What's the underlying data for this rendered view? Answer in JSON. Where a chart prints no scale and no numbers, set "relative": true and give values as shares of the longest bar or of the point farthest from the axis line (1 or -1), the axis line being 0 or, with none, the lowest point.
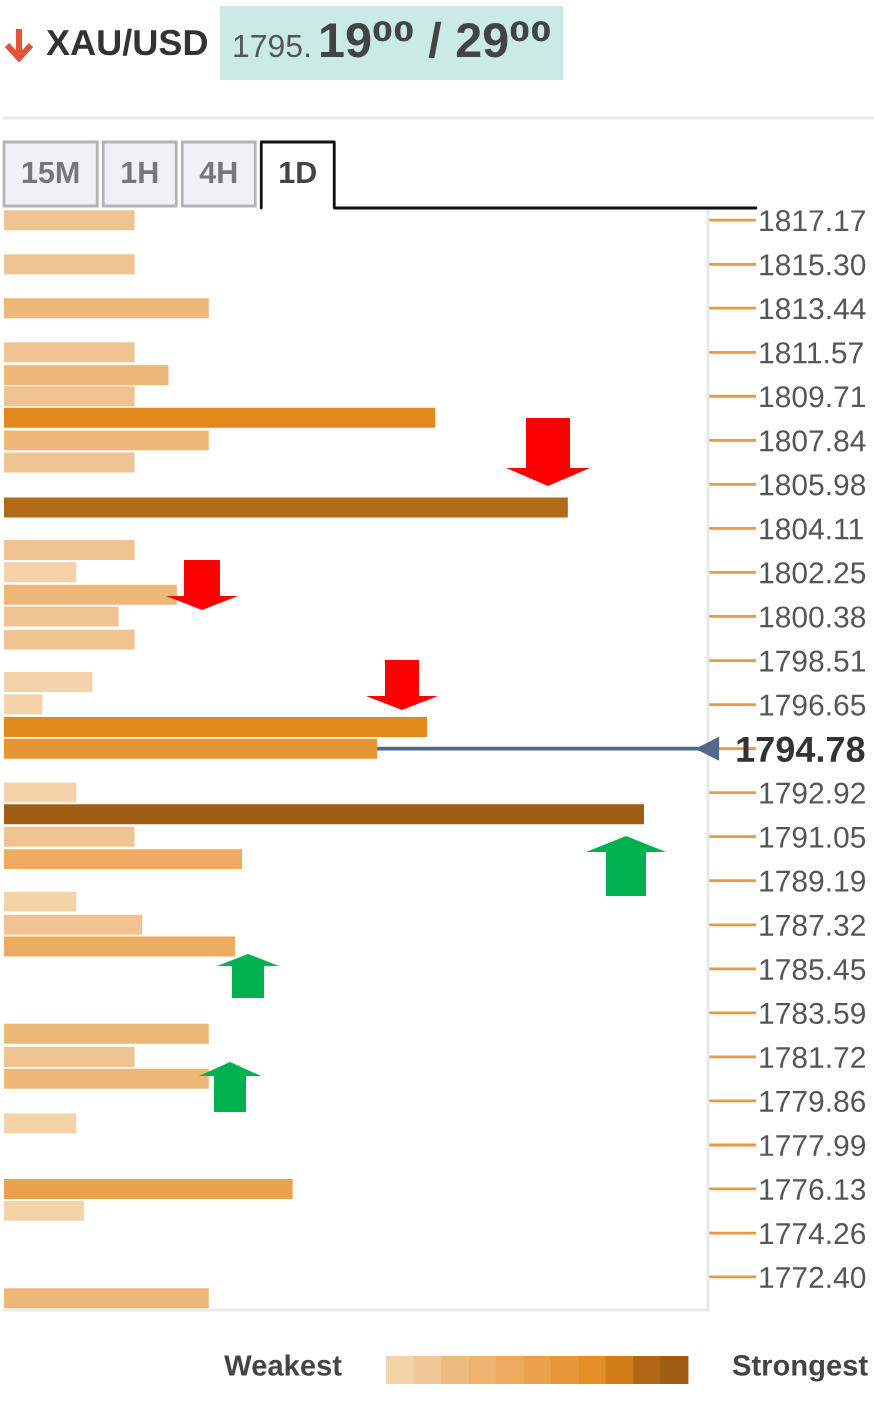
{
  "chart_data": {
    "type": "bar",
    "orientation": "horizontal",
    "relative": true,
    "tick_labels": "y",
    "title": "XAU/USD",
    "subtitle": "1795.19⁰⁰ / 29⁰⁰",
    "annotations": [
      "15M",
      "1H",
      "4H",
      "1D",
      "Weakest",
      "Strongest"
    ],
    "x": [
      1817.17,
      1815.3,
      1813.44,
      1811.57,
      1810.6,
      1809.71,
      1808.8,
      1807.84,
      1806.9,
      1805.0,
      1803.2,
      1802.25,
      1801.3,
      1800.38,
      1799.4,
      1797.6,
      1796.65,
      1795.7,
      1794.78,
      1792.92,
      1792.0,
      1791.05,
      1790.1,
      1788.3,
      1787.32,
      1786.4,
      1782.7,
      1781.72,
      1780.8,
      1778.9,
      1776.13,
      1775.2,
      1771.5
    ],
    "values": [
      0.204,
      0.204,
      0.32,
      0.204,
      0.257,
      0.204,
      0.674,
      0.32,
      0.204,
      0.881,
      0.204,
      0.113,
      0.27,
      0.179,
      0.204,
      0.138,
      0.06,
      0.661,
      0.583,
      0.113,
      1,
      0.204,
      0.372,
      0.113,
      0.216,
      0.361,
      0.32,
      0.204,
      0.32,
      0.113,
      0.451,
      0.125,
      0.32
    ],
    "colors": [
      "#f0c490",
      "#f0c490",
      "#edb777",
      "#f0c490",
      "#edb777",
      "#f0c490",
      "#e2891b",
      "#edb777",
      "#f0c490",
      "#b36a16",
      "#f0c490",
      "#f4d3a8",
      "#edb777",
      "#f0c490",
      "#f0c490",
      "#f4d3a8",
      "#f4d3a8",
      "#e2891b",
      "#e69535",
      "#f4d3a8",
      "#a05e14",
      "#f0c490",
      "#ecac62",
      "#f4d3a8",
      "#f0c490",
      "#ecac62",
      "#edb777",
      "#f0c490",
      "#edb777",
      "#f4d3a8",
      "#e9a14c",
      "#f4d3a8",
      "#edb777"
    ],
    "ylim": [
      1771.0,
      1817.6
    ],
    "yticks": [
      1817.17,
      {
        "value": 1815.3,
        "label": "1815.30"
      },
      1813.44,
      1811.57,
      1809.71,
      1807.84,
      1805.98,
      1804.11,
      1802.25,
      1800.38,
      1798.51,
      1796.65,
      1794.78,
      1792.92,
      1791.05,
      1789.19,
      1787.32,
      1785.45,
      1783.59,
      1781.72,
      1779.86,
      1777.99,
      1776.13,
      1774.26,
      {
        "value": 1772.4,
        "label": "1772.40"
      }
    ],
    "ref_lines": [
      {
        "axis": "y",
        "value": 1794.78,
        "color": "#52698a"
      }
    ]
  }
}
